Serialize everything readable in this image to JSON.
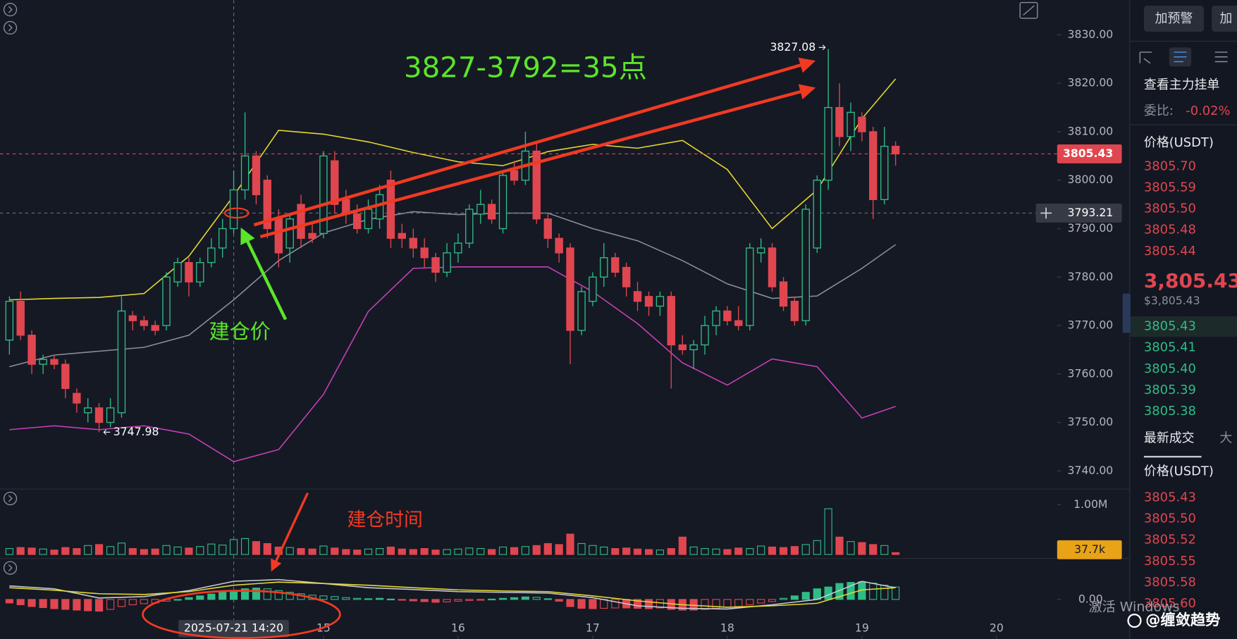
{
  "chart_data": {
    "type": "candlestick",
    "x": [
      12.667,
      12.75,
      12.833,
      12.917,
      13,
      13.083,
      13.167,
      13.25,
      13.333,
      13.417,
      13.5,
      13.583,
      13.667,
      13.75,
      13.833,
      13.917,
      14,
      14.083,
      14.167,
      14.25,
      14.333,
      14.417,
      14.5,
      14.583,
      14.667,
      14.75,
      14.833,
      14.917,
      15,
      15.083,
      15.167,
      15.25,
      15.333,
      15.417,
      15.5,
      15.583,
      15.667,
      15.75,
      15.833,
      15.917,
      16,
      16.083,
      16.167,
      16.25,
      16.333,
      16.417,
      16.5,
      16.583,
      16.667,
      16.75,
      16.833,
      16.917,
      17,
      17.083,
      17.167,
      17.25,
      17.333,
      17.417,
      17.5,
      17.583,
      17.667,
      17.75,
      17.833,
      17.917,
      18,
      18.083,
      18.167,
      18.25,
      18.333,
      18.417,
      18.5,
      18.583,
      18.667,
      18.75,
      18.833,
      18.917,
      19,
      19.083,
      19.167,
      19.25
    ],
    "open": [
      3767,
      3775,
      3768,
      3762,
      3763,
      3762,
      3756,
      3752,
      3753,
      3750,
      3752,
      3772,
      3771,
      3770,
      3770,
      3779,
      3783,
      3779,
      3783,
      3786,
      3790,
      3798,
      3805,
      3800,
      3792,
      3786,
      3795,
      3789,
      3789,
      3804,
      3796,
      3793,
      3790,
      3792,
      3800,
      3789,
      3788,
      3786,
      3784,
      3781,
      3785,
      3787,
      3793,
      3795,
      3790,
      3802,
      3800,
      3806,
      3792,
      3788,
      3786,
      3769,
      3775,
      3780,
      3784,
      3782,
      3777,
      3776,
      3774,
      3776,
      3766,
      3765,
      3766,
      3770,
      3773,
      3771,
      3770,
      3785,
      3786,
      3779,
      3775,
      3771,
      3786,
      3800,
      3815,
      3809,
      3813,
      3810,
      3796,
      3807
    ],
    "high": [
      3776,
      3777,
      3769,
      3764,
      3764,
      3763,
      3757,
      3755,
      3754,
      3755,
      3776,
      3773,
      3772,
      3771,
      3781,
      3784,
      3784,
      3784,
      3788,
      3792,
      3802,
      3814,
      3806,
      3801,
      3794,
      3793,
      3797,
      3791,
      3806,
      3806,
      3798,
      3795,
      3796,
      3799,
      3802,
      3791,
      3790,
      3788,
      3785,
      3787,
      3789,
      3795,
      3798,
      3796,
      3802,
      3804,
      3810,
      3808,
      3793,
      3789,
      3787,
      3778,
      3781,
      3787,
      3785,
      3783,
      3779,
      3777,
      3777,
      3777,
      3768,
      3767,
      3772,
      3774,
      3774,
      3774,
      3787,
      3788,
      3787,
      3780,
      3776,
      3795,
      3801,
      3827.08,
      3820,
      3816,
      3814,
      3811,
      3811,
      3808
    ],
    "low": [
      3764,
      3767,
      3760,
      3760,
      3761,
      3755,
      3752,
      3750,
      3747.98,
      3749,
      3751,
      3769,
      3769,
      3768,
      3769,
      3778,
      3776,
      3778,
      3782,
      3784,
      3789,
      3796,
      3795,
      3788,
      3782,
      3783,
      3786,
      3787,
      3788,
      3793,
      3791,
      3789,
      3789,
      3790,
      3786,
      3786,
      3784,
      3782,
      3779,
      3780,
      3783,
      3786,
      3791,
      3791,
      3789,
      3799,
      3799,
      3791,
      3786,
      3783,
      3762,
      3768,
      3774,
      3778,
      3780,
      3776,
      3773,
      3772,
      3772,
      3757,
      3764,
      3761,
      3764,
      3768,
      3770,
      3769,
      3769,
      3783,
      3777,
      3773,
      3770,
      3770,
      3785,
      3798,
      3807,
      3806,
      3808,
      3792,
      3795,
      3803
    ],
    "close": [
      3775,
      3768,
      3762,
      3763,
      3762,
      3757,
      3754,
      3753,
      3750,
      3753,
      3773,
      3771,
      3770,
      3769,
      3780,
      3783,
      3779,
      3783,
      3786,
      3790,
      3798,
      3805,
      3797,
      3790,
      3785,
      3792,
      3788,
      3788,
      3805,
      3795,
      3793,
      3790,
      3794,
      3797,
      3788,
      3788,
      3786,
      3784,
      3781,
      3785,
      3787,
      3794,
      3795,
      3792,
      3801,
      3800,
      3806,
      3792,
      3788,
      3785,
      3769,
      3777,
      3780,
      3784,
      3781,
      3778,
      3775,
      3774,
      3776,
      3766,
      3765,
      3766,
      3770,
      3773,
      3771,
      3770,
      3786,
      3786,
      3778,
      3774,
      3771,
      3794,
      3800,
      3815,
      3809,
      3814,
      3810,
      3796,
      3807,
      3805.43
    ],
    "up_color": "#2ebd85",
    "down_color": "#e0464f",
    "xlim": [
      12.597,
      20.45
    ],
    "xticks": [
      15,
      16,
      17,
      18,
      19,
      20
    ],
    "ylim": [
      3736.25,
      3837.16
    ],
    "yticks": [
      {
        "value": 3830,
        "label": "3830.00"
      },
      {
        "value": 3820,
        "label": "3820.00"
      },
      {
        "value": 3810,
        "label": "3810.00"
      },
      {
        "value": 3800,
        "label": "3800.00"
      },
      {
        "value": 3790,
        "label": "3790.00"
      },
      {
        "value": 3780,
        "label": "3780.00"
      },
      {
        "value": 3770,
        "label": "3770.00"
      },
      {
        "value": 3760,
        "label": "3760.00"
      },
      {
        "value": 3750,
        "label": "3750.00"
      },
      {
        "value": 3740,
        "label": "3740.00"
      }
    ],
    "bands": {
      "x": [
        12.667,
        13,
        13.333,
        13.667,
        14,
        14.333,
        14.667,
        15,
        15.333,
        15.667,
        16,
        16.333,
        16.667,
        17,
        17.333,
        17.667,
        18,
        18.333,
        18.667,
        19,
        19.25
      ],
      "series": [
        {
          "color": "#e6d92e",
          "values": [
            3775.3,
            3775.6,
            3775.8,
            3776.6,
            3784.3,
            3796.8,
            3810.3,
            3809.5,
            3807.9,
            3805.7,
            3803.8,
            3803,
            3805.9,
            3807.4,
            3806.6,
            3808.2,
            3802.2,
            3790,
            3798,
            3812.7,
            3820.9
          ]
        },
        {
          "color": "#8a8f9c",
          "values": [
            3761.5,
            3763.9,
            3764.7,
            3765.5,
            3768,
            3775.3,
            3783.4,
            3789.1,
            3791.9,
            3793.5,
            3792.9,
            3793.2,
            3793.2,
            3790,
            3787.5,
            3783.4,
            3778.6,
            3775.6,
            3776.1,
            3781.8,
            3786.7
          ]
        },
        {
          "color": "#c940b8",
          "values": [
            3748.5,
            3749.3,
            3748.5,
            3749.3,
            3747.6,
            3741.9,
            3744.4,
            3755.8,
            3772.9,
            3781.8,
            3782.1,
            3782.1,
            3782.1,
            3777,
            3770.4,
            3762.3,
            3757.7,
            3763.1,
            3761.5,
            3750.9,
            3753.3
          ]
        }
      ]
    },
    "price_line_color": "#e0464f",
    "crosshair": {
      "x": 14.333,
      "price": 3793.21,
      "time": "2025-07-21 14:20"
    },
    "annotations": [
      {
        "text": "3827-3792=35点",
        "color": "#5be52a"
      },
      {
        "text": "建仓价",
        "color": "#5be52a"
      },
      {
        "text": "建仓时间",
        "color": "#f03a22"
      }
    ],
    "volume": {
      "values": [
        120000,
        140000,
        130000,
        110000,
        90000,
        140000,
        120000,
        180000,
        200000,
        160000,
        230000,
        120000,
        100000,
        110000,
        180000,
        150000,
        130000,
        160000,
        210000,
        190000,
        300000,
        320000,
        260000,
        220000,
        150000,
        140000,
        120000,
        110000,
        170000,
        130000,
        100000,
        90000,
        110000,
        120000,
        150000,
        110000,
        100000,
        120000,
        90000,
        100000,
        110000,
        130000,
        120000,
        100000,
        150000,
        140000,
        160000,
        180000,
        220000,
        200000,
        410000,
        220000,
        180000,
        150000,
        120000,
        130000,
        110000,
        100000,
        90000,
        120000,
        350000,
        150000,
        120000,
        110000,
        100000,
        130000,
        120000,
        170000,
        150000,
        140000,
        160000,
        200000,
        280000,
        920000,
        350000,
        260000,
        240000,
        200000,
        180000,
        37700
      ],
      "ylim": [
        0,
        1300000
      ],
      "yticks": [
        {
          "value": 1000000,
          "label": "1.00M"
        }
      ],
      "marker": {
        "value": 37700,
        "label": "37.7k",
        "color": "#e8a317"
      }
    },
    "macd": {
      "values": [
        -1,
        -1.5,
        -2,
        -2.3,
        -2.6,
        -2.8,
        -3,
        -3.2,
        -3.3,
        -2.8,
        -2,
        -1.5,
        -1.2,
        -1,
        -0.5,
        0,
        0.5,
        1,
        1.5,
        2,
        2.5,
        3,
        3.2,
        3,
        2.5,
        2,
        1.6,
        1.2,
        1,
        0.8,
        0.5,
        0.3,
        0.2,
        0.3,
        0.1,
        -0.2,
        -0.4,
        -0.6,
        -0.8,
        -0.7,
        -0.5,
        -0.3,
        -0.1,
        0.1,
        0.3,
        0.5,
        0.7,
        0.6,
        0.2,
        -0.5,
        -2,
        -2.5,
        -2.6,
        -2.5,
        -2.4,
        -2.4,
        -2.5,
        -2.6,
        -2.4,
        -2.8,
        -3,
        -3,
        -2.8,
        -2.5,
        -2.2,
        -2,
        -1.5,
        -1,
        -0.6,
        0.3,
        1,
        2,
        3,
        3.5,
        4.5,
        4.8,
        5,
        4.6,
        4,
        3.5
      ],
      "ylim": [
        -10,
        10
      ],
      "yticks": [
        {
          "value": 0,
          "label": "0.00"
        }
      ],
      "lines": {
        "x": [
          12.667,
          13,
          13.333,
          13.667,
          14,
          14.333,
          14.667,
          15,
          15.333,
          15.667,
          16,
          16.333,
          16.667,
          17,
          17.333,
          17.667,
          18,
          18.333,
          18.667,
          19,
          19.25
        ],
        "series": [
          {
            "color": "#c9ccd4",
            "values": [
              3.8,
              3,
              0.4,
              0.8,
              2.5,
              5.1,
              5.6,
              4.5,
              3.3,
              2.8,
              2.2,
              2,
              1.8,
              0.5,
              -1.8,
              -2.5,
              -2.7,
              -1.5,
              0,
              5.1,
              3.3
            ]
          },
          {
            "color": "#e6d92e",
            "values": [
              3.3,
              2.6,
              1.6,
              1.4,
              2.2,
              4,
              4.9,
              4.5,
              4,
              3.3,
              2.7,
              2.4,
              2.2,
              1,
              -0.4,
              -1.5,
              -2.2,
              -1.8,
              -1.1,
              2.7,
              3.3
            ]
          }
        ]
      }
    }
  },
  "sidebar": {
    "buttons": [
      "加预警",
      "加"
    ],
    "title": "查看主力挂单",
    "ratio_label": "委比:",
    "ratio": "-0.02%",
    "price_header": "价格(USDT)",
    "asks": [
      "3805.70",
      "3805.59",
      "3805.50",
      "3805.48",
      "3805.44"
    ],
    "last_price": "3,805.43",
    "last_price_usd": "$3,805.43",
    "bids": [
      "3805.43",
      "3805.41",
      "3805.40",
      "3805.39",
      "3805.38"
    ],
    "tabs": [
      "最新成交",
      "大"
    ],
    "trades_header": "价格(USDT)",
    "trades": [
      "3805.43",
      "3805.50",
      "3805.52",
      "3805.55",
      "3805.58",
      "3805.60"
    ]
  },
  "watermark": {
    "line": "激活 Windows",
    "credit": "@缠敛趋势"
  }
}
